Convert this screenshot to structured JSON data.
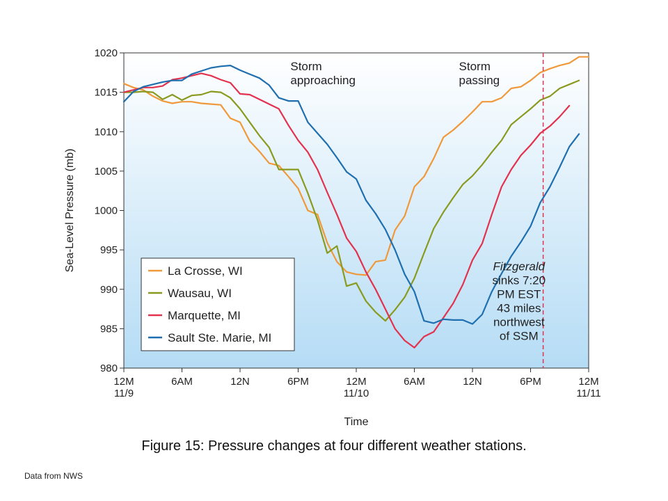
{
  "caption": "Figure 15: Pressure changes at four different weather stations.",
  "source": "Data from NWS",
  "colors": {
    "La Crosse, WI": "#f0993a",
    "Wausau, WI": "#8a9a1e",
    "Marquette, MI": "#e2324e",
    "Sault Ste. Marie, MI": "#1f6fb0",
    "event_line": "#e2324e",
    "bg_top": "#ffffff",
    "bg_bottom": "#b5dcf5"
  },
  "chart_data": {
    "type": "line",
    "xlabel": "Time",
    "ylabel": "Sea-Level Pressure (mb)",
    "xlim": [
      0,
      48
    ],
    "ylim": [
      980,
      1020
    ],
    "yticks": [
      980,
      985,
      990,
      995,
      1000,
      1005,
      1010,
      1015,
      1020
    ],
    "xticks": [
      {
        "x": 0,
        "label": "12M",
        "sublabel": "11/9"
      },
      {
        "x": 6,
        "label": "6AM",
        "sublabel": ""
      },
      {
        "x": 12,
        "label": "12N",
        "sublabel": ""
      },
      {
        "x": 18,
        "label": "6PM",
        "sublabel": ""
      },
      {
        "x": 24,
        "label": "12M",
        "sublabel": "11/10"
      },
      {
        "x": 30,
        "label": "6AM",
        "sublabel": ""
      },
      {
        "x": 36,
        "label": "12N",
        "sublabel": ""
      },
      {
        "x": 42,
        "label": "6PM",
        "sublabel": ""
      },
      {
        "x": 48,
        "label": "12M",
        "sublabel": "11/11"
      }
    ],
    "grid": false,
    "legend": {
      "position": "bottom-left"
    },
    "series": [
      {
        "name": "La Crosse, WI",
        "points": [
          [
            0,
            1016.1
          ],
          [
            1,
            1015.6
          ],
          [
            2,
            1015.3
          ],
          [
            3,
            1014.5
          ],
          [
            4,
            1013.9
          ],
          [
            5,
            1013.6
          ],
          [
            6,
            1013.8
          ],
          [
            7,
            1013.8
          ],
          [
            8,
            1013.6
          ],
          [
            9,
            1013.5
          ],
          [
            10,
            1013.4
          ],
          [
            11,
            1011.7
          ],
          [
            12,
            1011.2
          ],
          [
            13,
            1008.8
          ],
          [
            14,
            1007.5
          ],
          [
            15,
            1006.0
          ],
          [
            16,
            1005.7
          ],
          [
            17,
            1004.3
          ],
          [
            18,
            1002.8
          ],
          [
            19,
            1000.0
          ],
          [
            20,
            999.5
          ],
          [
            21,
            995.9
          ],
          [
            22,
            993.5
          ],
          [
            23,
            992.2
          ],
          [
            24,
            991.9
          ],
          [
            25,
            991.8
          ],
          [
            26,
            993.5
          ],
          [
            27,
            993.7
          ],
          [
            28,
            997.5
          ],
          [
            29,
            999.3
          ],
          [
            30,
            1003.0
          ],
          [
            31,
            1004.3
          ],
          [
            32,
            1006.6
          ],
          [
            33,
            1009.3
          ],
          [
            34,
            1010.2
          ],
          [
            35,
            1011.3
          ],
          [
            36,
            1012.5
          ],
          [
            37,
            1013.8
          ],
          [
            38,
            1013.8
          ],
          [
            39,
            1014.3
          ],
          [
            40,
            1015.5
          ],
          [
            41,
            1015.7
          ],
          [
            42,
            1016.5
          ],
          [
            43,
            1017.5
          ],
          [
            44,
            1018.0
          ],
          [
            45,
            1018.4
          ],
          [
            46,
            1018.7
          ],
          [
            47,
            1019.5
          ],
          [
            48,
            1019.5
          ]
        ]
      },
      {
        "name": "Wausau, WI",
        "points": [
          [
            0,
            1015.0
          ],
          [
            1,
            1015.0
          ],
          [
            2,
            1015.1
          ],
          [
            3,
            1015.0
          ],
          [
            4,
            1014.1
          ],
          [
            5,
            1014.7
          ],
          [
            6,
            1014.0
          ],
          [
            7,
            1014.6
          ],
          [
            8,
            1014.7
          ],
          [
            9,
            1015.1
          ],
          [
            10,
            1015.0
          ],
          [
            11,
            1014.3
          ],
          [
            12,
            1012.9
          ],
          [
            13,
            1011.2
          ],
          [
            14,
            1009.5
          ],
          [
            15,
            1008.0
          ],
          [
            16,
            1005.2
          ],
          [
            17,
            1005.2
          ],
          [
            18,
            1005.2
          ],
          [
            19,
            1002.2
          ],
          [
            20,
            998.8
          ],
          [
            21,
            994.6
          ],
          [
            22,
            995.5
          ],
          [
            23,
            990.4
          ],
          [
            24,
            990.8
          ],
          [
            25,
            988.5
          ],
          [
            26,
            987.1
          ],
          [
            27,
            986.0
          ],
          [
            28,
            987.4
          ],
          [
            29,
            989.0
          ],
          [
            30,
            991.4
          ],
          [
            31,
            994.6
          ],
          [
            32,
            997.7
          ],
          [
            33,
            999.8
          ],
          [
            34,
            1001.6
          ],
          [
            35,
            1003.3
          ],
          [
            36,
            1004.4
          ],
          [
            37,
            1005.8
          ],
          [
            38,
            1007.4
          ],
          [
            39,
            1008.9
          ],
          [
            40,
            1010.9
          ],
          [
            41,
            1011.9
          ],
          [
            42,
            1012.9
          ],
          [
            43,
            1014.0
          ],
          [
            44,
            1014.5
          ],
          [
            45,
            1015.5
          ],
          [
            46,
            1016.0
          ],
          [
            47,
            1016.5
          ]
        ]
      },
      {
        "name": "Marquette, MI",
        "points": [
          [
            0,
            1015.0
          ],
          [
            1,
            1015.3
          ],
          [
            2,
            1015.6
          ],
          [
            3,
            1015.6
          ],
          [
            4,
            1015.8
          ],
          [
            5,
            1016.6
          ],
          [
            6,
            1016.8
          ],
          [
            7,
            1017.1
          ],
          [
            8,
            1017.4
          ],
          [
            9,
            1017.1
          ],
          [
            10,
            1016.6
          ],
          [
            11,
            1016.2
          ],
          [
            12,
            1014.8
          ],
          [
            13,
            1014.7
          ],
          [
            14,
            1014.1
          ],
          [
            15,
            1013.5
          ],
          [
            16,
            1012.9
          ],
          [
            17,
            1010.8
          ],
          [
            18,
            1008.9
          ],
          [
            19,
            1007.4
          ],
          [
            20,
            1005.2
          ],
          [
            21,
            1002.3
          ],
          [
            22,
            999.5
          ],
          [
            23,
            996.5
          ],
          [
            24,
            994.8
          ],
          [
            25,
            992.2
          ],
          [
            26,
            990.0
          ],
          [
            27,
            987.5
          ],
          [
            28,
            985.0
          ],
          [
            29,
            983.5
          ],
          [
            30,
            982.6
          ],
          [
            31,
            984.0
          ],
          [
            32,
            984.6
          ],
          [
            33,
            986.4
          ],
          [
            34,
            988.2
          ],
          [
            35,
            990.6
          ],
          [
            36,
            993.7
          ],
          [
            37,
            995.8
          ],
          [
            38,
            999.5
          ],
          [
            39,
            1003.0
          ],
          [
            40,
            1005.2
          ],
          [
            41,
            1007.0
          ],
          [
            42,
            1008.3
          ],
          [
            43,
            1009.8
          ],
          [
            44,
            1010.7
          ],
          [
            45,
            1011.9
          ],
          [
            46,
            1013.3
          ]
        ]
      },
      {
        "name": "Sault Ste. Marie, MI",
        "points": [
          [
            0,
            1013.8
          ],
          [
            1,
            1015.1
          ],
          [
            2,
            1015.7
          ],
          [
            3,
            1016.0
          ],
          [
            4,
            1016.3
          ],
          [
            5,
            1016.5
          ],
          [
            6,
            1016.5
          ],
          [
            7,
            1017.3
          ],
          [
            8,
            1017.7
          ],
          [
            9,
            1018.1
          ],
          [
            10,
            1018.3
          ],
          [
            11,
            1018.4
          ],
          [
            12,
            1017.8
          ],
          [
            13,
            1017.3
          ],
          [
            14,
            1016.8
          ],
          [
            15,
            1015.9
          ],
          [
            16,
            1014.3
          ],
          [
            17,
            1013.9
          ],
          [
            18,
            1013.9
          ],
          [
            19,
            1011.2
          ],
          [
            20,
            1009.8
          ],
          [
            21,
            1008.4
          ],
          [
            22,
            1006.7
          ],
          [
            23,
            1004.9
          ],
          [
            24,
            1004.0
          ],
          [
            25,
            1001.3
          ],
          [
            26,
            999.6
          ],
          [
            27,
            997.6
          ],
          [
            28,
            995.0
          ],
          [
            29,
            991.9
          ],
          [
            30,
            989.7
          ],
          [
            31,
            986.0
          ],
          [
            32,
            985.7
          ],
          [
            33,
            986.2
          ],
          [
            34,
            986.1
          ],
          [
            35,
            986.1
          ],
          [
            36,
            985.6
          ],
          [
            37,
            986.8
          ],
          [
            38,
            989.7
          ],
          [
            39,
            992.0
          ],
          [
            40,
            994.2
          ],
          [
            41,
            996.0
          ],
          [
            42,
            998.0
          ],
          [
            43,
            1001.0
          ],
          [
            44,
            1003.0
          ],
          [
            45,
            1005.5
          ],
          [
            46,
            1008.1
          ],
          [
            47,
            1009.7
          ]
        ]
      }
    ],
    "event_line": {
      "x": 43.3
    },
    "annotations": [
      {
        "id": "storm-approaching",
        "lines": [
          "Storm",
          "approaching"
        ],
        "x": 17.2,
        "y": 1017.8
      },
      {
        "id": "storm-passing",
        "lines": [
          "Storm",
          "passing"
        ],
        "x": 34.6,
        "y": 1017.8
      },
      {
        "id": "fitzgerald",
        "lines": [
          "Fitzgerald",
          "sinks 7:20",
          "PM EST",
          "43 miles",
          "northwest",
          "of SSM"
        ],
        "x": 40.8,
        "y": 992.4,
        "italic_first": true
      }
    ]
  }
}
